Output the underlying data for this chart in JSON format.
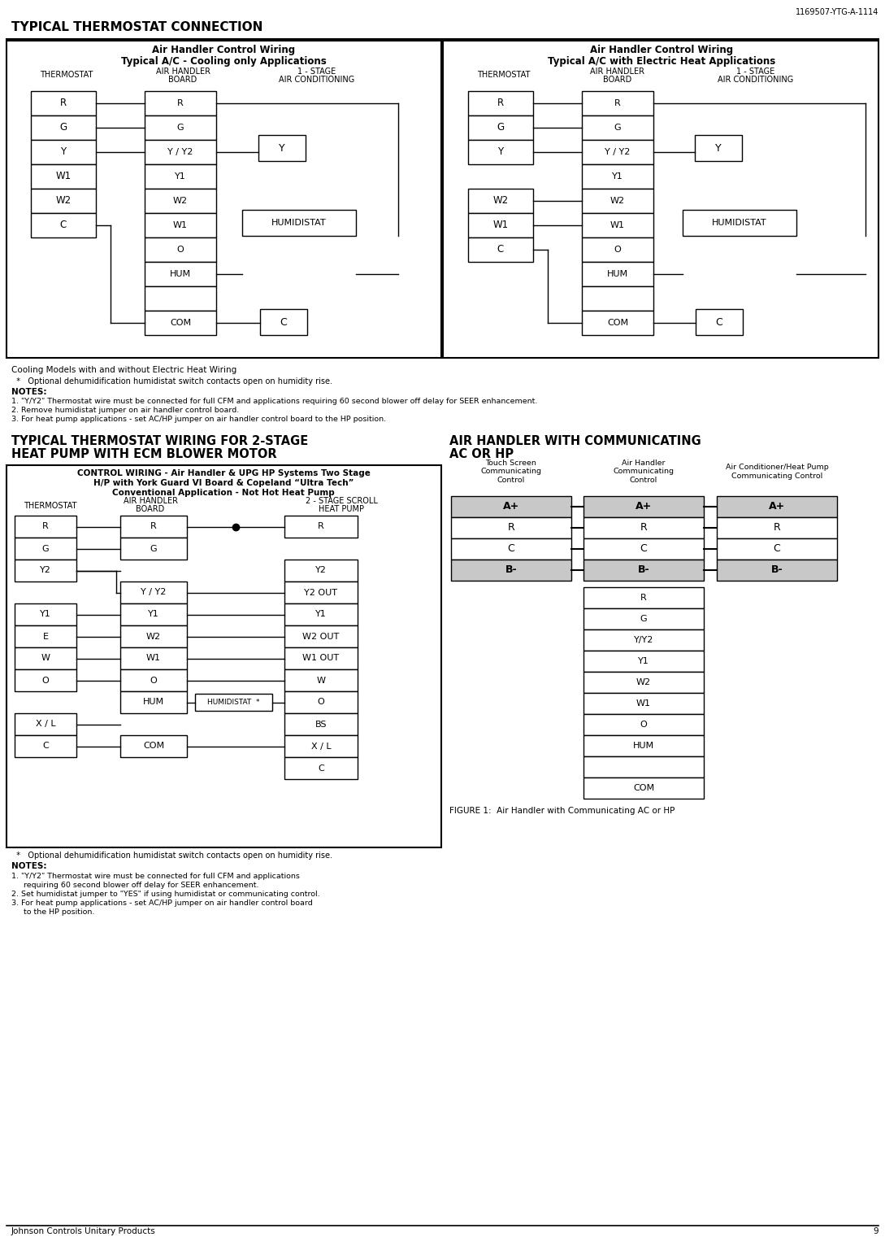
{
  "page_id": "1169507-YTG-A-1114",
  "page_num": "9",
  "footer": "Johnson Controls Unitary Products",
  "bg": "#ffffff",
  "black": "#000000"
}
